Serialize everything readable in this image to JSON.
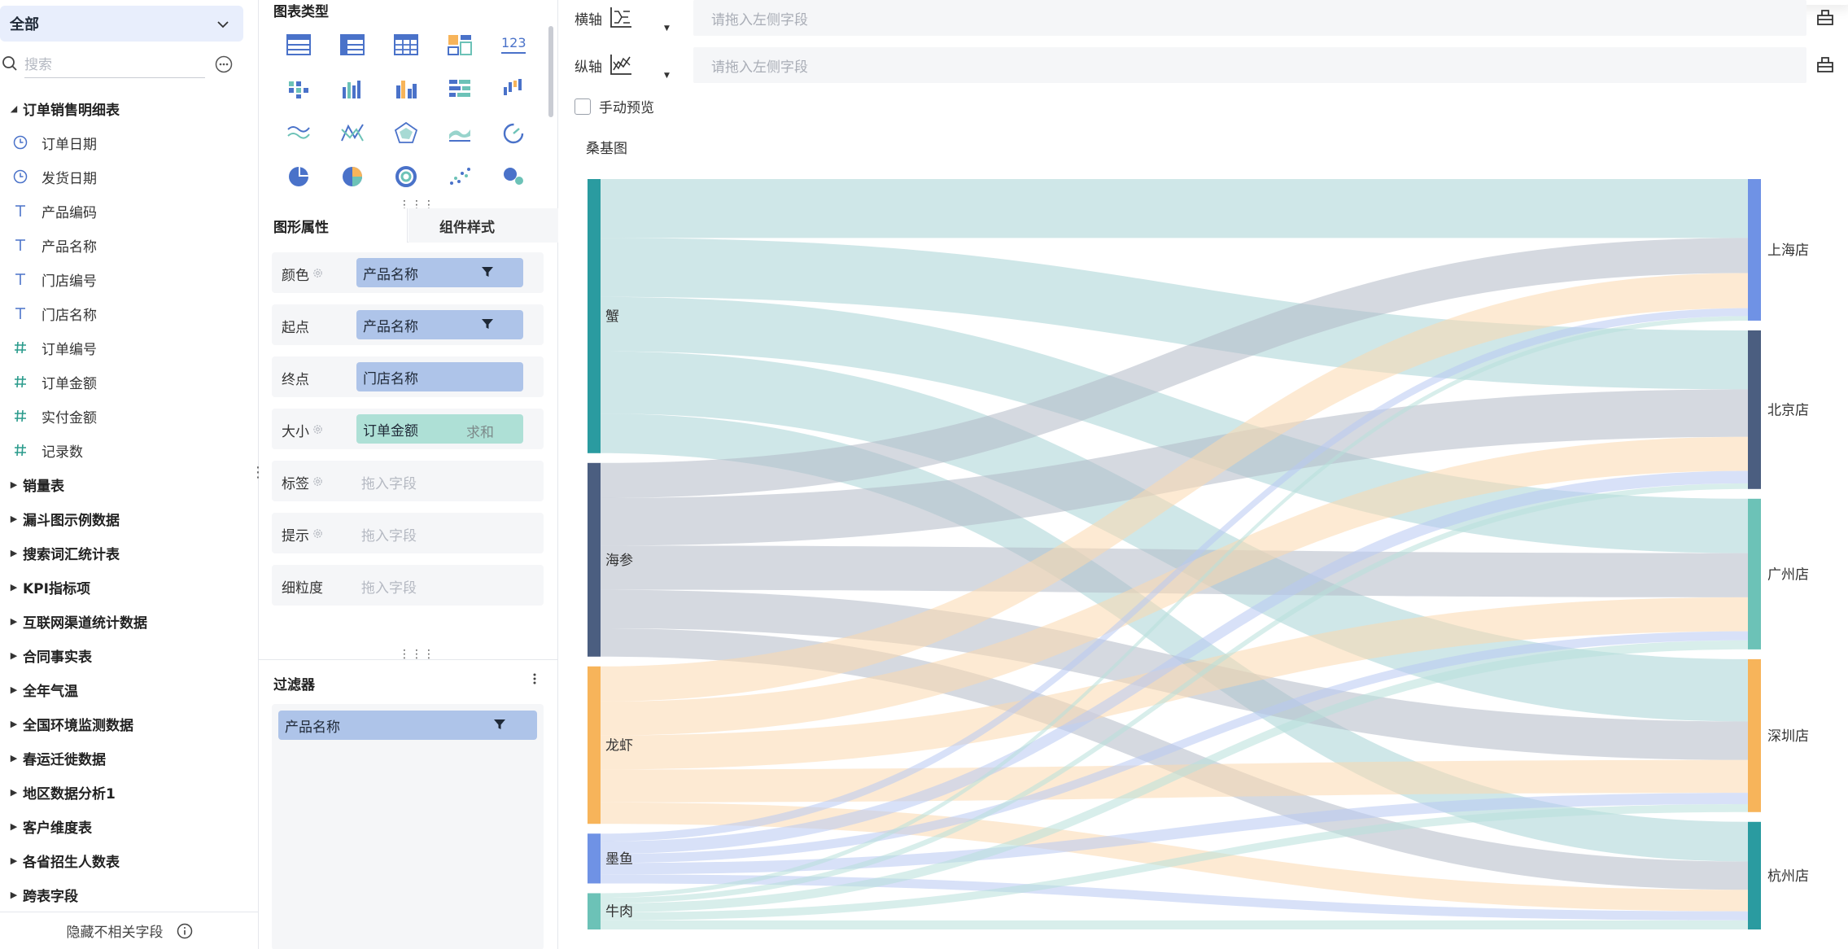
{
  "left_panel": {
    "dataset_selector": "全部",
    "search_placeholder": "搜索",
    "expanded_table": {
      "name": "订单销售明细表",
      "fields": [
        {
          "name": "订单日期",
          "type": "date",
          "icon": "clock-icon"
        },
        {
          "name": "发货日期",
          "type": "date",
          "icon": "clock-icon"
        },
        {
          "name": "产品编码",
          "type": "text",
          "icon": "text-type-icon"
        },
        {
          "name": "产品名称",
          "type": "text",
          "icon": "text-type-icon"
        },
        {
          "name": "门店编号",
          "type": "text",
          "icon": "text-type-icon"
        },
        {
          "name": "门店名称",
          "type": "text",
          "icon": "text-type-icon"
        },
        {
          "name": "订单编号",
          "type": "number",
          "icon": "hash-icon"
        },
        {
          "name": "订单金额",
          "type": "number",
          "icon": "hash-icon"
        },
        {
          "name": "实付金额",
          "type": "number",
          "icon": "hash-icon"
        },
        {
          "name": "记录数",
          "type": "number",
          "icon": "hash-icon"
        }
      ]
    },
    "collapsed_tables": [
      "销量表",
      "漏斗图示例数据",
      "搜索词汇统计表",
      "KPI指标项",
      "互联网渠道统计数据",
      "合同事实表",
      "全年气温",
      "全国环境监测数据",
      "春运迁徙数据",
      "地区数据分析1",
      "客户维度表",
      "各省招生人数表",
      "跨表字段"
    ],
    "hide_fields_label": "隐藏不相关字段"
  },
  "config_panel": {
    "chart_types_title": "图表类型",
    "chart_type_icons": [
      "table-icon",
      "crosstable-icon",
      "detail-table-icon",
      "dashboard-block-icon",
      "number-123-icon",
      "grouped-bar-icon",
      "bar-icon",
      "bar-multi-icon",
      "horizontal-bar-icon",
      "rising-bar-icon",
      "line-multi-icon",
      "line-cross-icon",
      "radar-icon",
      "area-icon",
      "gauge-icon",
      "pie-icon",
      "pie-multi-icon",
      "ring-icon",
      "scatter-icon",
      "bubble-icon"
    ],
    "number_icon_text": "123",
    "tabs": {
      "shape": "图形属性",
      "style": "组件样式"
    },
    "properties": [
      {
        "label": "颜色",
        "value": "产品名称",
        "kind": "field-filter",
        "has_gear": true
      },
      {
        "label": "起点",
        "value": "产品名称",
        "kind": "field-filter",
        "has_gear": false
      },
      {
        "label": "终点",
        "value": "门店名称",
        "kind": "field",
        "has_gear": false
      },
      {
        "label": "大小",
        "value": "订单金额",
        "agg": "求和",
        "kind": "measure",
        "has_gear": true
      },
      {
        "label": "标签",
        "value": "拖入字段",
        "kind": "empty",
        "has_gear": true
      },
      {
        "label": "提示",
        "value": "拖入字段",
        "kind": "empty",
        "has_gear": true
      },
      {
        "label": "细粒度",
        "value": "拖入字段",
        "kind": "empty",
        "has_gear": false
      }
    ],
    "filter": {
      "title": "过滤器",
      "field": "产品名称"
    }
  },
  "main": {
    "x_axis": {
      "label": "横轴",
      "placeholder": "请拖入左侧字段"
    },
    "y_axis": {
      "label": "纵轴",
      "placeholder": "请拖入左侧字段"
    },
    "manual_preview_label": "手动预览",
    "manual_preview_checked": false,
    "chart_title": "桑基图"
  },
  "chart_data": {
    "type": "sankey",
    "title": "桑基图",
    "sources": [
      {
        "name": "蟹",
        "color": "#2a9ba0"
      },
      {
        "name": "海参",
        "color": "#4b5e80"
      },
      {
        "name": "龙虾",
        "color": "#f7b45a"
      },
      {
        "name": "墨鱼",
        "color": "#6f92e5"
      },
      {
        "name": "牛肉",
        "color": "#6cc2b7"
      }
    ],
    "targets": [
      {
        "name": "上海店",
        "color": "#6f92e5"
      },
      {
        "name": "北京店",
        "color": "#4b5e80"
      },
      {
        "name": "广州店",
        "color": "#6cc2b7"
      },
      {
        "name": "深圳店",
        "color": "#f7b45a"
      },
      {
        "name": "杭州店",
        "color": "#2a9ba0"
      }
    ],
    "link_colors": {
      "蟹": "#a8d4d6",
      "海参": "#b2b9c6",
      "龙虾": "#fbd8ae",
      "墨鱼": "#b8c8f2",
      "牛肉": "#b8e0da"
    },
    "links": [
      {
        "source": "蟹",
        "target": "上海店",
        "value": 52
      },
      {
        "source": "蟹",
        "target": "北京店",
        "value": 52
      },
      {
        "source": "蟹",
        "target": "广州店",
        "value": 48
      },
      {
        "source": "蟹",
        "target": "深圳店",
        "value": 55
      },
      {
        "source": "蟹",
        "target": "杭州店",
        "value": 35
      },
      {
        "source": "海参",
        "target": "上海店",
        "value": 31
      },
      {
        "source": "海参",
        "target": "北京店",
        "value": 42
      },
      {
        "source": "海参",
        "target": "广州店",
        "value": 39
      },
      {
        "source": "海参",
        "target": "深圳店",
        "value": 34
      },
      {
        "source": "海参",
        "target": "杭州店",
        "value": 25
      },
      {
        "source": "龙虾",
        "target": "上海店",
        "value": 31
      },
      {
        "source": "龙虾",
        "target": "北京店",
        "value": 30
      },
      {
        "source": "龙虾",
        "target": "广州店",
        "value": 30
      },
      {
        "source": "龙虾",
        "target": "深圳店",
        "value": 29
      },
      {
        "source": "龙虾",
        "target": "杭州店",
        "value": 19
      },
      {
        "source": "墨鱼",
        "target": "上海店",
        "value": 7
      },
      {
        "source": "墨鱼",
        "target": "北京店",
        "value": 11
      },
      {
        "source": "墨鱼",
        "target": "广州店",
        "value": 8
      },
      {
        "source": "墨鱼",
        "target": "深圳店",
        "value": 10
      },
      {
        "source": "墨鱼",
        "target": "杭州店",
        "value": 8
      },
      {
        "source": "牛肉",
        "target": "上海店",
        "value": 4
      },
      {
        "source": "牛肉",
        "target": "北京店",
        "value": 5
      },
      {
        "source": "牛肉",
        "target": "广州店",
        "value": 8
      },
      {
        "source": "牛肉",
        "target": "深圳店",
        "value": 7
      },
      {
        "source": "牛肉",
        "target": "杭州店",
        "value": 8
      }
    ]
  }
}
